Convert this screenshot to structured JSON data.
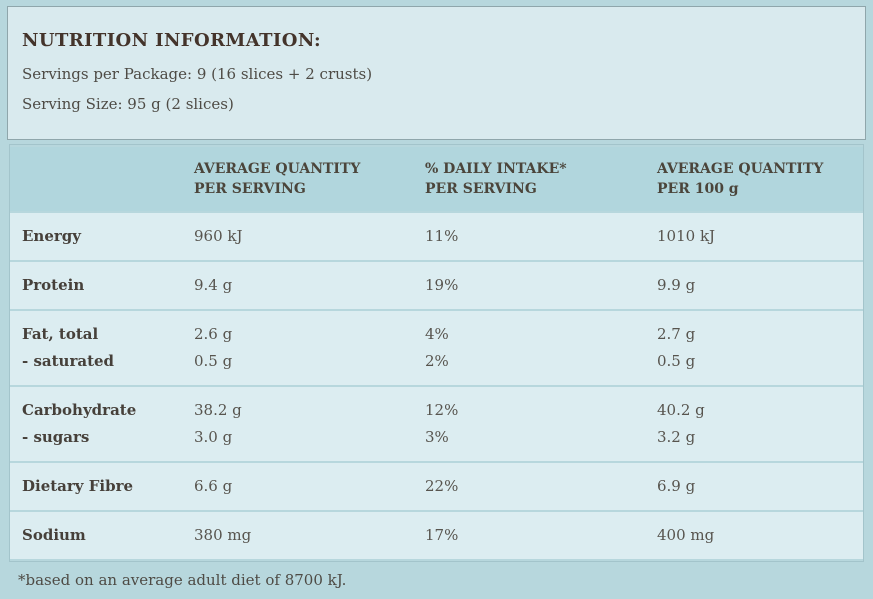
{
  "panel": {
    "title": "NUTRITION INFORMATION:",
    "servings_per_package": "Servings per Package: 9 (16 slices + 2 crusts)",
    "serving_size": "Serving Size: 95 g (2 slices)"
  },
  "table": {
    "headers": [
      {
        "lines": []
      },
      {
        "lines": [
          "AVERAGE QUANTITY",
          "PER SERVING"
        ]
      },
      {
        "lines": [
          "% DAILY INTAKE*",
          "PER SERVING"
        ]
      },
      {
        "lines": [
          "AVERAGE QUANTITY",
          "PER 100 g"
        ]
      }
    ],
    "rows": [
      {
        "nutrient": [
          "Energy"
        ],
        "per_serving": [
          "960 kJ"
        ],
        "daily_intake": [
          "11%"
        ],
        "per_100g": [
          "1010 kJ"
        ]
      },
      {
        "nutrient": [
          "Protein"
        ],
        "per_serving": [
          "9.4 g"
        ],
        "daily_intake": [
          "19%"
        ],
        "per_100g": [
          "9.9 g"
        ]
      },
      {
        "nutrient": [
          "Fat, total",
          "- saturated"
        ],
        "per_serving": [
          "2.6 g",
          "0.5 g"
        ],
        "daily_intake": [
          "4%",
          "2%"
        ],
        "per_100g": [
          "2.7 g",
          "0.5 g"
        ]
      },
      {
        "nutrient": [
          "Carbohydrate",
          "- sugars"
        ],
        "per_serving": [
          "38.2 g",
          "3.0 g"
        ],
        "daily_intake": [
          "12%",
          "3%"
        ],
        "per_100g": [
          "40.2 g",
          "3.2 g"
        ]
      },
      {
        "nutrient": [
          "Dietary Fibre"
        ],
        "per_serving": [
          "6.6 g"
        ],
        "daily_intake": [
          "22%"
        ],
        "per_100g": [
          "6.9 g"
        ]
      },
      {
        "nutrient": [
          "Sodium"
        ],
        "per_serving": [
          "380 mg"
        ],
        "daily_intake": [
          "17%"
        ],
        "per_100g": [
          "400 mg"
        ]
      }
    ]
  },
  "footnote": "*based on an average adult diet of 8700 kJ.",
  "colors": {
    "page_bg": "#b7d7dd",
    "info_box_bg": "#d9eaee",
    "info_box_border": "#8fa6ab",
    "table_header_bg": "#b1d6dd",
    "row_bg": "#dcedf1",
    "table_border": "#a3c4cb",
    "title_text": "#44342b",
    "body_text": "#4e4b45",
    "header_text": "#4b453b",
    "label_text": "#46403a",
    "value_text": "#57544e"
  }
}
